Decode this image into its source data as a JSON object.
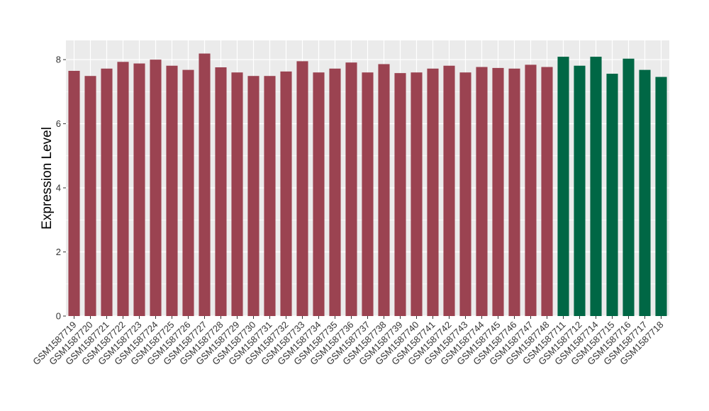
{
  "chart_data": {
    "type": "bar",
    "title": "",
    "xlabel": "",
    "ylabel": "Expression Level",
    "ylim": [
      0,
      8.6
    ],
    "yticks": [
      0,
      2,
      4,
      6,
      8
    ],
    "grid": true,
    "legend": "none",
    "colors": {
      "panel_bg": "#EBEBEB",
      "grid_major": "#FFFFFF",
      "group_a": "#9B4351",
      "group_b": "#006745"
    },
    "categories": [
      "GSM1587719",
      "GSM1587720",
      "GSM1587721",
      "GSM1587722",
      "GSM1587723",
      "GSM1587724",
      "GSM1587725",
      "GSM1587726",
      "GSM1587727",
      "GSM1587728",
      "GSM1587729",
      "GSM1587730",
      "GSM1587731",
      "GSM1587732",
      "GSM1587733",
      "GSM1587734",
      "GSM1587735",
      "GSM1587736",
      "GSM1587737",
      "GSM1587738",
      "GSM1587739",
      "GSM1587740",
      "GSM1587741",
      "GSM1587742",
      "GSM1587743",
      "GSM1587744",
      "GSM1587745",
      "GSM1587746",
      "GSM1587747",
      "GSM1587748",
      "GSM1587711",
      "GSM1587712",
      "GSM1587714",
      "GSM1587715",
      "GSM1587716",
      "GSM1587717",
      "GSM1587718"
    ],
    "values": [
      7.65,
      7.49,
      7.72,
      7.93,
      7.88,
      8.0,
      7.81,
      7.68,
      8.19,
      7.76,
      7.6,
      7.49,
      7.49,
      7.63,
      7.95,
      7.6,
      7.72,
      7.91,
      7.6,
      7.86,
      7.58,
      7.6,
      7.72,
      7.81,
      7.6,
      7.77,
      7.74,
      7.72,
      7.84,
      7.77,
      8.09,
      7.81,
      8.09,
      7.56,
      8.03,
      7.68,
      7.46
    ],
    "groups": [
      "a",
      "a",
      "a",
      "a",
      "a",
      "a",
      "a",
      "a",
      "a",
      "a",
      "a",
      "a",
      "a",
      "a",
      "a",
      "a",
      "a",
      "a",
      "a",
      "a",
      "a",
      "a",
      "a",
      "a",
      "a",
      "a",
      "a",
      "a",
      "a",
      "a",
      "b",
      "b",
      "b",
      "b",
      "b",
      "b",
      "b"
    ]
  }
}
